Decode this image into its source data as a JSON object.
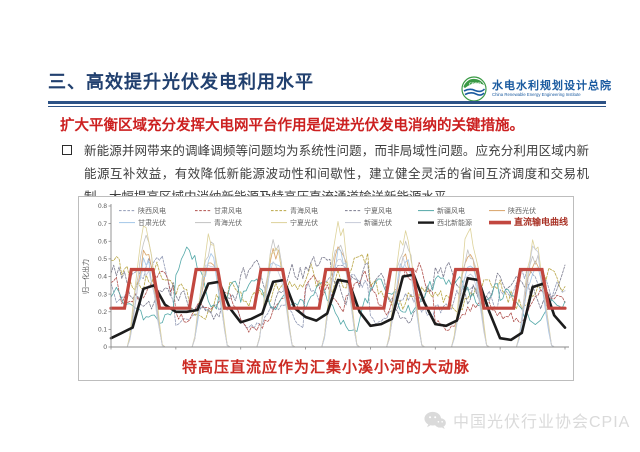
{
  "slide": {
    "title": "三、高效提升光伏发电利用水平",
    "logo": {
      "emblem": "CREEI",
      "org_cn": "水电水利规划设计总院",
      "org_en": "China Renewable Energy Engineering Institute"
    },
    "key_message": "扩大平衡区域充分发挥大电网平台作用是促进光伏发电消纳的关键措施。",
    "bullet_text": "新能源并网带来的调峰调频等问题均为系统性问题，而非局域性问题。应充分利用区域内新能源互补效益，有效降低新能源波动性和间歇性，建立健全灵活的省间互济调度和交易机制，大幅提高区域内消纳新能源及特高压直流通道输送新能源水平。",
    "chart_caption": "特高压直流应作为汇集小溪小河的大动脉",
    "watermark_text": "中国光伏行业协会CPIA",
    "colors": {
      "title_navy": "#21406f",
      "rule_blue": "#2c5286",
      "accent_red": "#cc2020",
      "caption_red": "#cc2a22",
      "watermark_gray": "#dadada"
    }
  },
  "chart_data": {
    "type": "line",
    "title": "",
    "xlabel": "",
    "ylabel": "归一化出力",
    "ylim": [
      0,
      0.8
    ],
    "yticks": [
      0,
      0.1,
      0.2,
      0.3,
      0.4,
      0.5,
      0.6,
      0.7,
      0.8
    ],
    "x_hours_range": [
      0,
      168
    ],
    "days": 7,
    "grid": false,
    "legend_position": "top-inside-two-rows",
    "series": [
      {
        "name": "陕西风电",
        "kind": "wind",
        "color": "#9099b5",
        "dashed": true,
        "daily_peaks": [
          0.58,
          0.3,
          0.25,
          0.58,
          0.35,
          0.45,
          0.55
        ]
      },
      {
        "name": "甘肃风电",
        "kind": "wind",
        "color": "#b0524e",
        "dashed": true,
        "daily_peaks": [
          0.5,
          0.35,
          0.3,
          0.52,
          0.55,
          0.3,
          0.35
        ]
      },
      {
        "name": "青海风电",
        "kind": "wind",
        "color": "#b9a646",
        "dashed": true,
        "daily_peaks": [
          0.68,
          0.55,
          0.5,
          0.65,
          0.45,
          0.5,
          0.62
        ]
      },
      {
        "name": "宁夏风电",
        "kind": "wind",
        "color": "#7b7b8e",
        "dashed": true,
        "daily_peaks": [
          0.57,
          0.45,
          0.58,
          0.65,
          0.45,
          0.62,
          0.58
        ]
      },
      {
        "name": "新疆风电",
        "kind": "wind",
        "color": "#53a8a8",
        "dashed": false,
        "daily_peaks": [
          0.35,
          0.6,
          0.45,
          0.4,
          0.45,
          0.55,
          0.4
        ]
      },
      {
        "name": "陕西光伏",
        "kind": "solar",
        "color": "#d8a368",
        "dashed": false,
        "daily_peaks": [
          0.52,
          0.5,
          0.55,
          0.58,
          0.5,
          0.52,
          0.5
        ]
      },
      {
        "name": "甘肃光伏",
        "kind": "solar",
        "color": "#a3c6e8",
        "dashed": false,
        "daily_peaks": [
          0.48,
          0.5,
          0.52,
          0.55,
          0.5,
          0.48,
          0.45
        ]
      },
      {
        "name": "青海光伏",
        "kind": "solar",
        "color": "#c2c2c2",
        "dashed": false,
        "daily_peaks": [
          0.6,
          0.58,
          0.6,
          0.62,
          0.6,
          0.55,
          0.52
        ]
      },
      {
        "name": "宁夏光伏",
        "kind": "solar",
        "color": "#ddd29a",
        "dashed": false,
        "daily_peaks": [
          0.68,
          0.62,
          0.58,
          0.7,
          0.65,
          0.66,
          0.6
        ]
      },
      {
        "name": "新疆光伏",
        "kind": "solar",
        "color": "#c7cbd9",
        "dashed": false,
        "daily_peaks": [
          0.45,
          0.5,
          0.48,
          0.52,
          0.5,
          0.45,
          0.55
        ]
      }
    ],
    "aggregate_series": {
      "name": "西北新能源",
      "color": "#1c1c1c",
      "width": 2.6,
      "samples_step_hours": 4,
      "values": [
        0.05,
        0.08,
        0.11,
        0.33,
        0.35,
        0.24,
        0.2,
        0.2,
        0.21,
        0.36,
        0.37,
        0.22,
        0.14,
        0.16,
        0.19,
        0.37,
        0.38,
        0.22,
        0.17,
        0.15,
        0.19,
        0.38,
        0.37,
        0.2,
        0.12,
        0.13,
        0.16,
        0.4,
        0.41,
        0.25,
        0.13,
        0.12,
        0.15,
        0.39,
        0.38,
        0.2,
        0.05,
        0.04,
        0.08,
        0.34,
        0.36,
        0.18,
        0.11
      ]
    },
    "dc_series": {
      "name": "直流输电曲线",
      "color": "#c2473f",
      "width": 3.2,
      "base_value": 0.22,
      "plateau_value": 0.44,
      "daily_profile": [
        [
          0,
          0.22
        ],
        [
          5,
          0.22
        ],
        [
          7.5,
          0.44
        ],
        [
          15.5,
          0.44
        ],
        [
          18,
          0.22
        ],
        [
          24,
          0.22
        ]
      ]
    }
  }
}
